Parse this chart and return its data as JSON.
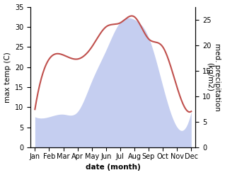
{
  "months": [
    "Jan",
    "Feb",
    "Mar",
    "Apr",
    "May",
    "Jun",
    "Jul",
    "Aug",
    "Sep",
    "Oct",
    "Nov",
    "Dec"
  ],
  "temperature": [
    9.5,
    22.0,
    23.0,
    22.0,
    25.0,
    30.0,
    31.0,
    32.5,
    27.0,
    25.0,
    15.0,
    9.0
  ],
  "precipitation": [
    6.0,
    6.0,
    6.5,
    7.0,
    13.0,
    19.0,
    24.5,
    25.0,
    21.5,
    12.0,
    4.0,
    7.0
  ],
  "temp_color": "#c0504d",
  "precip_fill_color": "#c5cef0",
  "precip_edge_color": "#a0aadd",
  "temp_ylim": [
    0,
    35
  ],
  "precip_ylim": [
    0,
    27.5
  ],
  "ylabel_left": "max temp (C)",
  "ylabel_right": "med. precipitation\n(kg/m2)",
  "xlabel": "date (month)",
  "temp_yticks": [
    0,
    5,
    10,
    15,
    20,
    25,
    30,
    35
  ],
  "precip_yticks": [
    0,
    5,
    10,
    15,
    20,
    25
  ],
  "background_color": "#ffffff",
  "label_fontsize": 7.5,
  "tick_fontsize": 7
}
